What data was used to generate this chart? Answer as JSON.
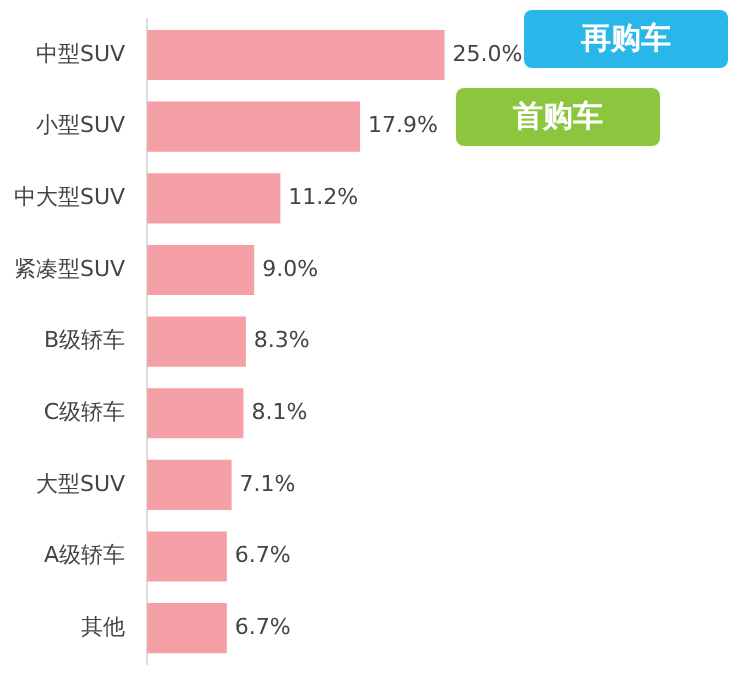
{
  "chart_data": {
    "type": "bar",
    "orientation": "horizontal",
    "categories": [
      "中型SUV",
      "小型SUV",
      "中大型SUV",
      "紧凑型SUV",
      "B级轿车",
      "C级轿车",
      "大型SUV",
      "A级轿车",
      "其他"
    ],
    "values": [
      25.0,
      17.9,
      11.2,
      9.0,
      8.3,
      8.1,
      7.1,
      6.7,
      6.7
    ],
    "value_labels": [
      "25.0%",
      "17.9%",
      "11.2%",
      "9.0%",
      "8.3%",
      "8.1%",
      "7.1%",
      "6.7%",
      "6.7%"
    ],
    "color": "#f4a0a6",
    "annotations": [
      "再购车",
      "首购车"
    ],
    "legend": false,
    "grid": false
  }
}
